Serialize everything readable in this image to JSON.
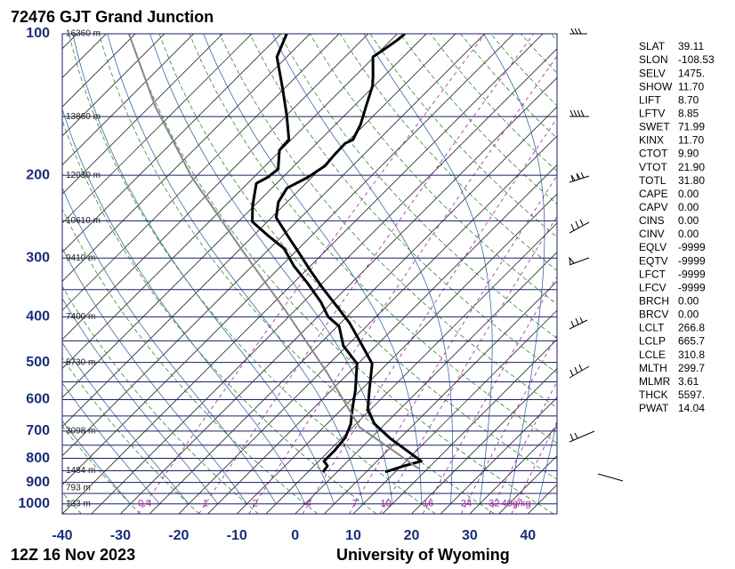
{
  "chart_data": {
    "type": "skewt",
    "title": "72476 GJT Grand Junction",
    "footer_left": "12Z 16 Nov 2023",
    "footer_right": "University of Wyoming",
    "xlim": [
      -40,
      45
    ],
    "xticks": [
      -40,
      -30,
      -20,
      -10,
      0,
      10,
      20,
      30,
      40
    ],
    "ylim": [
      1050,
      100
    ],
    "yticks": [
      100,
      200,
      300,
      400,
      500,
      600,
      700,
      800,
      900,
      1000
    ],
    "isobars": [
      100,
      150,
      200,
      250,
      300,
      350,
      400,
      450,
      500,
      550,
      600,
      650,
      700,
      750,
      800,
      850,
      900,
      950,
      1000,
      1050
    ],
    "heights": [
      {
        "value": 100,
        "label": "16360 m"
      },
      {
        "value": 150,
        "label": "13860 m"
      },
      {
        "value": 200,
        "label": "12030 m"
      },
      {
        "value": 250,
        "label": "10610 m"
      },
      {
        "value": 300,
        "label": "9410 m"
      },
      {
        "value": 400,
        "label": "7400 m"
      },
      {
        "value": 500,
        "label": "5730 m"
      },
      {
        "value": 700,
        "label": "3098 m"
      },
      {
        "value": 850,
        "label": "1484 m"
      },
      {
        "value": 925,
        "label": "793 m"
      },
      {
        "value": 1000,
        "label": "133 m"
      }
    ],
    "mixing_ratios": [
      {
        "value": 0.4,
        "label": "0.4"
      },
      {
        "value": 1,
        "label": "1"
      },
      {
        "value": 2,
        "label": "2"
      },
      {
        "value": 4,
        "label": "4"
      },
      {
        "value": 7,
        "label": "7"
      },
      {
        "value": 10,
        "label": "10"
      },
      {
        "value": 16,
        "label": "16"
      },
      {
        "value": 24,
        "label": "24"
      },
      {
        "value": 32,
        "label": "32"
      },
      {
        "value": 40,
        "label": "40g/kg"
      }
    ],
    "series": [
      {
        "color": "#000000",
        "x": [
          8.3,
          10.5,
          12.6,
          8.0,
          3.3,
          -1.8,
          -5.4,
          -8.5,
          -12.6,
          -18.3,
          -23.5,
          -28.5,
          -34.0,
          -39.2,
          -44.3,
          -49.3,
          -54.2,
          -56.5,
          -57.4,
          -55.7,
          -54.7,
          -55.0,
          -55.1,
          -54.4,
          -55.7,
          -58.0,
          -60.3,
          -61.9,
          -65.2,
          -64.6,
          -63.9,
          -63.7
        ],
        "values": [
          855,
          830,
          811,
          767,
          725,
          676,
          631,
          573,
          503,
          453,
          412,
          380,
          348,
          319,
          292,
          268,
          246,
          228,
          213,
          202,
          191,
          181,
          171,
          168,
          156,
          142,
          129,
          123,
          112,
          108,
          103,
          100
        ]
      },
      {
        "color": "#000000",
        "x": [
          -2.4,
          -2.7,
          -4.1,
          -4.1,
          -4.5,
          -5.9,
          -8.3,
          -10.9,
          -15.2,
          -20.6,
          -24.7,
          -28.2,
          -32.0,
          -37.4,
          -42.8,
          -47.6,
          -52.7,
          -57.6,
          -60.3,
          -63.5,
          -62.6,
          -62.2,
          -65.2,
          -65.4,
          -65.4,
          -70.0,
          -75.2,
          -81.7,
          -84.0
        ],
        "values": [
          855,
          830,
          811,
          771,
          722,
          676,
          626,
          573,
          503,
          461,
          419,
          400,
          372,
          340,
          312,
          286,
          268,
          251,
          232,
          208,
          202,
          194,
          177,
          170,
          168,
          149,
          131,
          112,
          100
        ]
      },
      {
        "color": "#888888",
        "x": [
          13.5,
          6.2,
          -3.8,
          -19.1,
          -36.6,
          -55.0,
          -75.6,
          -94.0,
          -111.1
        ],
        "values": [
          842,
          772,
          687,
          523,
          388,
          286,
          202,
          143,
          100
        ]
      }
    ]
  },
  "station_parameters": [
    [
      "SLAT",
      "39.11"
    ],
    [
      "SLON",
      "-108.53"
    ],
    [
      "SELV",
      "1475."
    ],
    [
      "SHOW",
      "11.70"
    ],
    [
      "LIFT",
      "8.70"
    ],
    [
      "LFTV",
      "8.85"
    ],
    [
      "SWET",
      "71.99"
    ],
    [
      "KINX",
      "11.70"
    ],
    [
      "CTOT",
      "9.90"
    ],
    [
      "VTOT",
      "21.90"
    ],
    [
      "TOTL",
      "31.80"
    ],
    [
      "CAPE",
      "0.00"
    ],
    [
      "CAPV",
      "0.00"
    ],
    [
      "CINS",
      "0.00"
    ],
    [
      "CINV",
      "0.00"
    ],
    [
      "EQLV",
      "-9999"
    ],
    [
      "EQTV",
      "-9999"
    ],
    [
      "LFCT",
      "-9999"
    ],
    [
      "LFCV",
      "-9999"
    ],
    [
      "BRCH",
      "0.00"
    ],
    [
      "BRCV",
      "0.00"
    ],
    [
      "LCLT",
      "266.8"
    ],
    [
      "LCLP",
      "665.7"
    ],
    [
      "LCLE",
      "310.8"
    ],
    [
      "MLTH",
      "299.7"
    ],
    [
      "MLMR",
      "3.61"
    ],
    [
      "THCK",
      "5597."
    ],
    [
      "PWAT",
      "14.04"
    ]
  ]
}
